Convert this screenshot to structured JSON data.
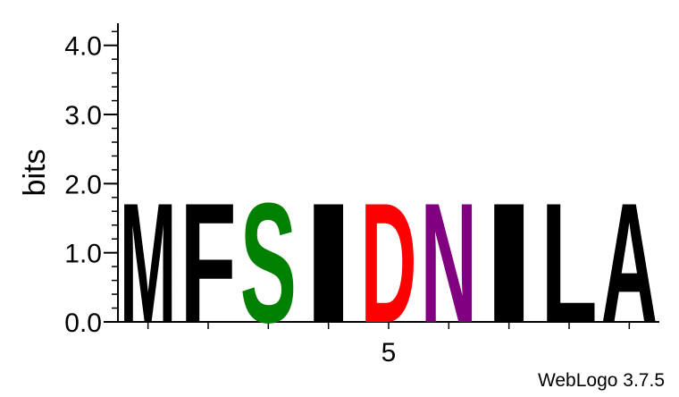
{
  "chart_data": {
    "type": "sequence-logo",
    "ylabel": "bits",
    "ylim": [
      0,
      4.32
    ],
    "yticks": [
      "0.0",
      "1.0",
      "2.0",
      "3.0",
      "4.0"
    ],
    "xtick_label": "5",
    "positions": [
      {
        "letter": "M",
        "bits": 1.78,
        "color": "#000000"
      },
      {
        "letter": "F",
        "bits": 1.78,
        "color": "#000000"
      },
      {
        "letter": "S",
        "bits": 1.78,
        "color": "#008000"
      },
      {
        "letter": "I",
        "bits": 1.78,
        "color": "#000000"
      },
      {
        "letter": "D",
        "bits": 1.78,
        "color": "#ff0000"
      },
      {
        "letter": "N",
        "bits": 1.78,
        "color": "#800080"
      },
      {
        "letter": "I",
        "bits": 1.78,
        "color": "#000000"
      },
      {
        "letter": "L",
        "bits": 1.78,
        "color": "#000000"
      },
      {
        "letter": "A",
        "bits": 1.78,
        "color": "#000000"
      }
    ]
  },
  "footer": "WebLogo 3.7.5"
}
